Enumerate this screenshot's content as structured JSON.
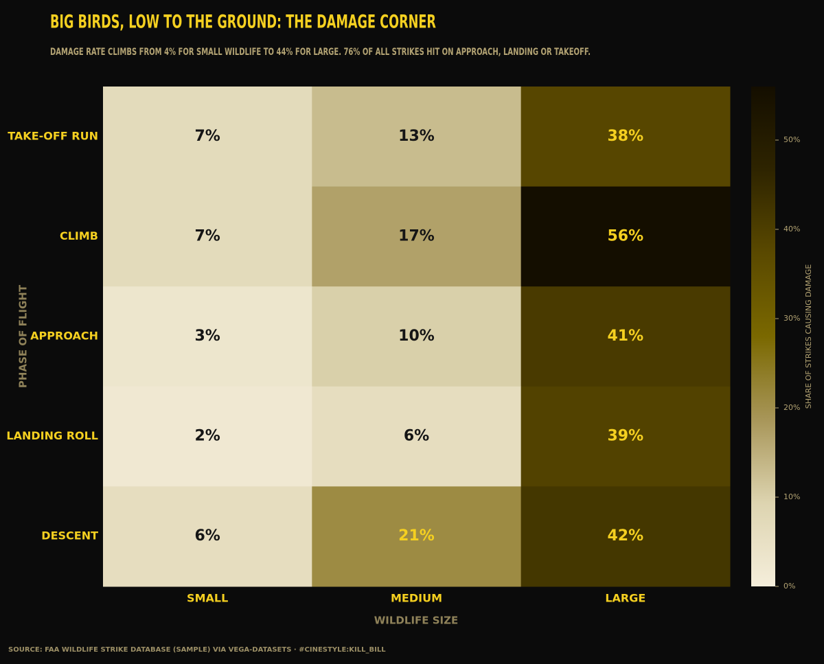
{
  "chart_data": {
    "type": "heatmap",
    "title": "BIG BIRDS, LOW TO THE GROUND: THE DAMAGE CORNER",
    "subtitle": "DAMAGE RATE CLIMBS FROM 4% FOR SMALL WILDLIFE TO 44% FOR LARGE. 76% OF ALL STRIKES HIT ON APPROACH, LANDING OR TAKEOFF.",
    "x_label": "WILDLIFE SIZE",
    "y_label": "PHASE OF FLIGHT",
    "colorbar_label": "SHARE OF STRIKES CAUSING DAMAGE",
    "source": "SOURCE: FAA WILDLIFE STRIKE DATABASE (SAMPLE) VIA VEGA-DATASETS · #CINESTYLE:KILL_BILL",
    "categories": [
      "SMALL",
      "MEDIUM",
      "LARGE"
    ],
    "rows": [
      "TAKE-OFF RUN",
      "CLIMB",
      "APPROACH",
      "LANDING ROLL",
      "DESCENT"
    ],
    "values": [
      [
        7,
        13,
        38
      ],
      [
        7,
        17,
        56
      ],
      [
        3,
        10,
        41
      ],
      [
        2,
        6,
        39
      ],
      [
        6,
        21,
        42
      ]
    ],
    "value_labels": [
      [
        "7%",
        "13%",
        "38%"
      ],
      [
        "7%",
        "17%",
        "56%"
      ],
      [
        "3%",
        "10%",
        "41%"
      ],
      [
        "2%",
        "6%",
        "39%"
      ],
      [
        "6%",
        "21%",
        "42%"
      ]
    ],
    "clim": [
      0,
      56
    ],
    "cticks": [
      {
        "value": 0,
        "label": "0%"
      },
      {
        "value": 10,
        "label": "10%"
      },
      {
        "value": 20,
        "label": "20%"
      },
      {
        "value": 30,
        "label": "30%"
      },
      {
        "value": 40,
        "label": "40%"
      },
      {
        "value": 50,
        "label": "50%"
      }
    ],
    "colorscale": [
      "#f5eedb",
      "#ddd4b0",
      "#a89659",
      "#7a6800",
      "#5a4900",
      "#2e2400",
      "#140e00"
    ],
    "dark_text_color": "#151515",
    "light_text_color": "#f5d020"
  }
}
